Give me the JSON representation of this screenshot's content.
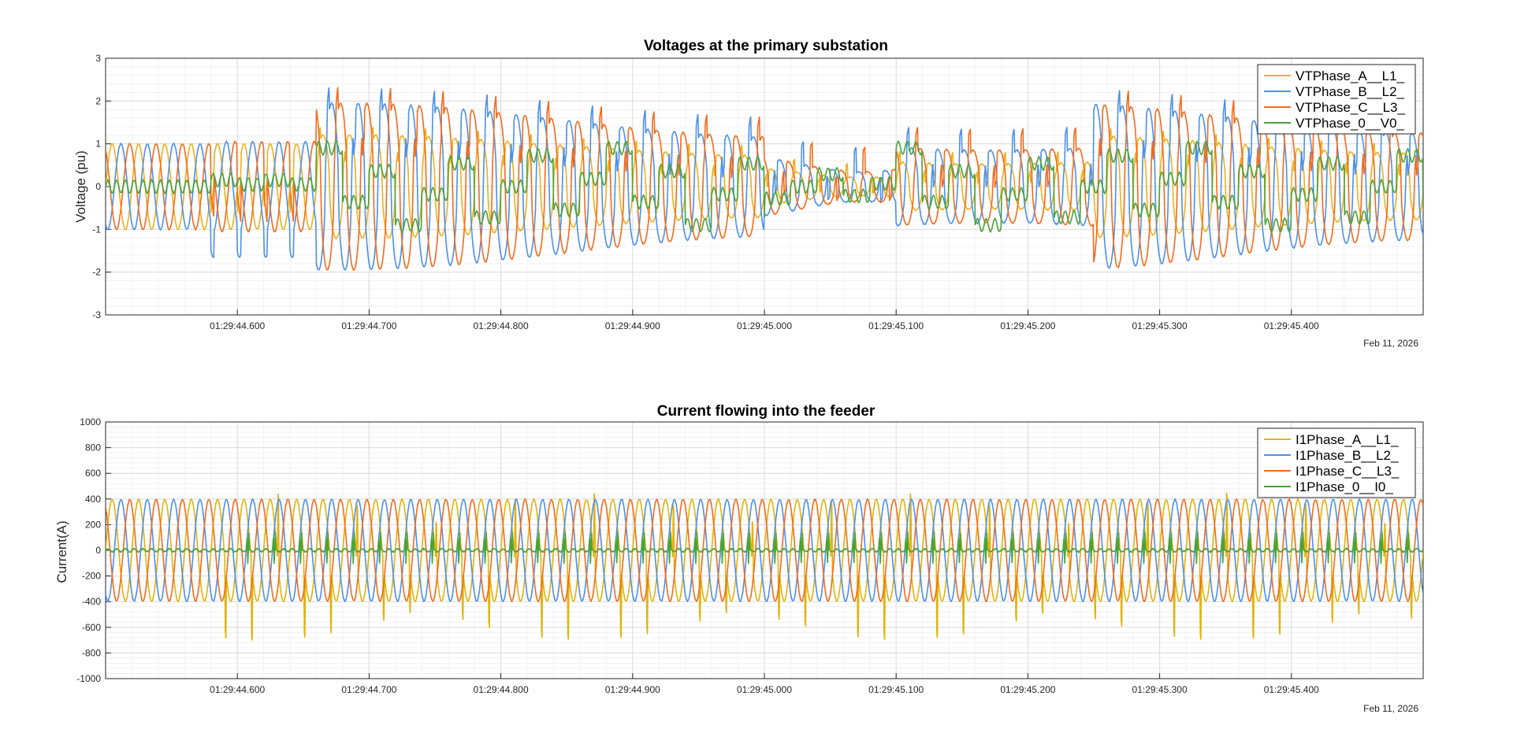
{
  "figure": {
    "background": "#ffffff"
  },
  "chart_data": [
    {
      "type": "line",
      "title": "Voltages at the primary substation",
      "ylabel": "Voltage (pu)",
      "xlabel": "",
      "date_label": "Feb 11, 2026",
      "xlim": [
        "01:29:44.500",
        "01:29:45.500"
      ],
      "ylim": [
        -3,
        3
      ],
      "yticks": [
        -3,
        -2,
        -1,
        0,
        1,
        2,
        3
      ],
      "xticks": [
        "01:29:44.600",
        "01:29:44.700",
        "01:29:44.800",
        "01:29:44.900",
        "01:29:45.000",
        "01:29:45.100",
        "01:29:45.200",
        "01:29:45.300",
        "01:29:45.400"
      ],
      "grid": true,
      "minor_grid": true,
      "legend_position": "top-right",
      "fundamental_hz": 50,
      "series": [
        {
          "name": "VTPhase_A__L1_",
          "color": "#EDB120"
        },
        {
          "name": "VTPhase_B__L2_",
          "color": "#4D90E8"
        },
        {
          "name": "VTPhase_C__L3_",
          "color": "#F26B1D"
        },
        {
          "name": "VTPhase_0__V0_",
          "color": "#4AA33A"
        }
      ]
    },
    {
      "type": "line",
      "title": "Current flowing into the feeder",
      "ylabel": "Current(A)",
      "xlabel": "",
      "date_label": "Feb 11, 2026",
      "xlim": [
        "01:29:44.500",
        "01:29:45.500"
      ],
      "ylim": [
        -1000,
        1000
      ],
      "yticks": [
        -1000,
        -800,
        -600,
        -400,
        -200,
        0,
        200,
        400,
        600,
        800,
        1000
      ],
      "xticks": [
        "01:29:44.600",
        "01:29:44.700",
        "01:29:44.800",
        "01:29:44.900",
        "01:29:45.000",
        "01:29:45.100",
        "01:29:45.200",
        "01:29:45.300",
        "01:29:45.400"
      ],
      "grid": true,
      "minor_grid": true,
      "legend_position": "top-right",
      "fundamental_hz": 50,
      "series": [
        {
          "name": "I1Phase_A__L1_",
          "color": "#E0B40C"
        },
        {
          "name": "I1Phase_B__L2_",
          "color": "#4D90E8"
        },
        {
          "name": "I1Phase_C__L3_",
          "color": "#F26B1D"
        },
        {
          "name": "I1Phase_0__I0_",
          "color": "#4AA33A"
        }
      ]
    }
  ]
}
